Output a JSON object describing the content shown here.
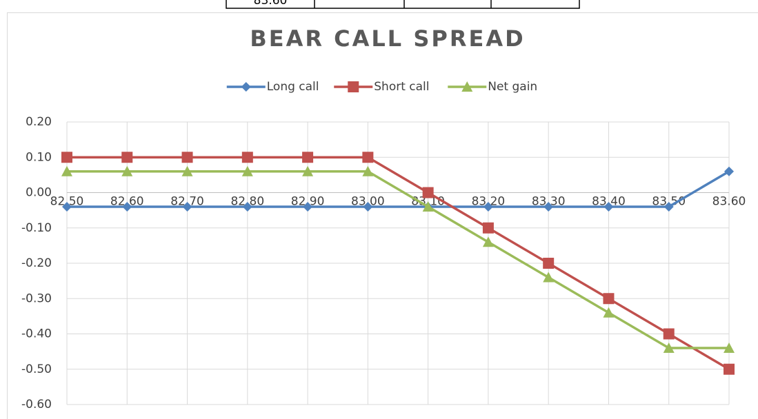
{
  "table": {
    "rows": [
      [
        "83.60"
      ]
    ]
  },
  "chart_data": {
    "type": "line",
    "title": "BEAR CALL SPREAD",
    "categories": [
      "82.50",
      "82.60",
      "82.70",
      "82.80",
      "82.90",
      "83.00",
      "83.10",
      "83.20",
      "83.30",
      "83.40",
      "83.50",
      "83.60"
    ],
    "series": [
      {
        "name": "Long call",
        "color": "#4f81bd",
        "marker": "diamond",
        "values": [
          -0.04,
          -0.04,
          -0.04,
          -0.04,
          -0.04,
          -0.04,
          -0.04,
          -0.04,
          -0.04,
          -0.04,
          -0.04,
          0.06
        ]
      },
      {
        "name": "Short call",
        "color": "#c0504d",
        "marker": "square",
        "values": [
          0.1,
          0.1,
          0.1,
          0.1,
          0.1,
          0.1,
          0,
          -0.1,
          -0.2,
          -0.3,
          -0.4,
          -0.5
        ]
      },
      {
        "name": "Net gain",
        "color": "#9bbb59",
        "marker": "triangle",
        "values": [
          0.06,
          0.06,
          0.06,
          0.06,
          0.06,
          0.06,
          -0.04,
          -0.14,
          -0.24,
          -0.34,
          -0.44,
          -0.44
        ]
      }
    ],
    "ylim": [
      -0.6,
      0.2
    ],
    "yticks": [
      {
        "value": 0.2,
        "label": "0.20"
      },
      {
        "value": 0.1,
        "label": "0.10"
      },
      {
        "value": 0,
        "label": "0.00"
      },
      {
        "value": -0.1,
        "label": "-0.10"
      },
      {
        "value": -0.2,
        "label": "-0.20"
      },
      {
        "value": -0.3,
        "label": "-0.30"
      },
      {
        "value": -0.4,
        "label": "-0.40"
      },
      {
        "value": -0.5,
        "label": "-0.50"
      },
      {
        "value": -0.6,
        "label": "-0.60"
      }
    ],
    "grid": true,
    "legend": "top"
  }
}
